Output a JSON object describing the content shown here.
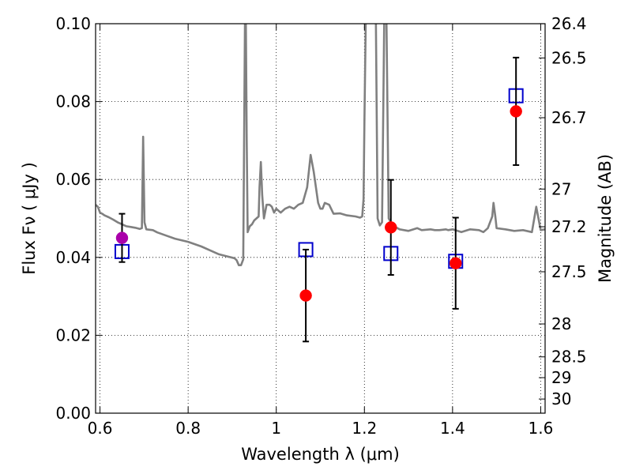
{
  "chart_data": {
    "type": "scatter",
    "title": "",
    "xlabel": "Wavelength  λ (μm)",
    "ylabel": "Flux  Fν  ( μJy )",
    "ylabel_right": "Magnitude (AB)",
    "xlim": [
      0.59,
      1.61
    ],
    "ylim": [
      0.0,
      0.1
    ],
    "grid": true,
    "x_ticks": [
      {
        "value": 0.6,
        "label": "0.6"
      },
      {
        "value": 0.8,
        "label": "0.8"
      },
      {
        "value": 1.0,
        "label": "1"
      },
      {
        "value": 1.2,
        "label": "1.2"
      },
      {
        "value": 1.4,
        "label": "1.4"
      },
      {
        "value": 1.6,
        "label": "1.6"
      }
    ],
    "y_ticks": [
      {
        "value": 0.0,
        "label": "0.00"
      },
      {
        "value": 0.02,
        "label": "0.02"
      },
      {
        "value": 0.04,
        "label": "0.04"
      },
      {
        "value": 0.06,
        "label": "0.06"
      },
      {
        "value": 0.08,
        "label": "0.08"
      },
      {
        "value": 0.1,
        "label": "0.10"
      }
    ],
    "right_ticks": [
      {
        "value": 26.4,
        "label": "26.4"
      },
      {
        "value": 26.5,
        "label": "26.5"
      },
      {
        "value": 26.7,
        "label": "26.7"
      },
      {
        "value": 27.0,
        "label": "27"
      },
      {
        "value": 27.2,
        "label": "27.2"
      },
      {
        "value": 27.5,
        "label": "27.5"
      },
      {
        "value": 28.0,
        "label": "28"
      },
      {
        "value": 28.5,
        "label": "28.5"
      },
      {
        "value": 29.0,
        "label": "29"
      },
      {
        "value": 30.0,
        "label": "30"
      }
    ],
    "series": [
      {
        "type": "line",
        "color": "#808080",
        "points": [
          [
            0.59,
            0.0535
          ],
          [
            0.595,
            0.053
          ],
          [
            0.6,
            0.0515
          ],
          [
            0.605,
            0.0512
          ],
          [
            0.61,
            0.0508
          ],
          [
            0.62,
            0.0503
          ],
          [
            0.63,
            0.0497
          ],
          [
            0.64,
            0.049
          ],
          [
            0.65,
            0.0485
          ],
          [
            0.66,
            0.048
          ],
          [
            0.67,
            0.0478
          ],
          [
            0.68,
            0.0476
          ],
          [
            0.69,
            0.0473
          ],
          [
            0.695,
            0.0475
          ],
          [
            0.698,
            0.071
          ],
          [
            0.701,
            0.049
          ],
          [
            0.705,
            0.0472
          ],
          [
            0.72,
            0.047
          ],
          [
            0.73,
            0.0464
          ],
          [
            0.74,
            0.046
          ],
          [
            0.75,
            0.0456
          ],
          [
            0.77,
            0.0448
          ],
          [
            0.8,
            0.044
          ],
          [
            0.83,
            0.0428
          ],
          [
            0.85,
            0.0418
          ],
          [
            0.87,
            0.0408
          ],
          [
            0.89,
            0.0402
          ],
          [
            0.905,
            0.0398
          ],
          [
            0.91,
            0.0393
          ],
          [
            0.915,
            0.038
          ],
          [
            0.92,
            0.038
          ],
          [
            0.925,
            0.0395
          ],
          [
            0.927,
            0.07
          ],
          [
            0.929,
            0.101
          ],
          [
            0.931,
            0.101
          ],
          [
            0.933,
            0.07
          ],
          [
            0.935,
            0.0465
          ],
          [
            0.94,
            0.048
          ],
          [
            0.945,
            0.0485
          ],
          [
            0.95,
            0.0495
          ],
          [
            0.96,
            0.0505
          ],
          [
            0.962,
            0.058
          ],
          [
            0.965,
            0.0645
          ],
          [
            0.968,
            0.056
          ],
          [
            0.972,
            0.05
          ],
          [
            0.978,
            0.0535
          ],
          [
            0.985,
            0.0535
          ],
          [
            0.99,
            0.053
          ],
          [
            0.995,
            0.0515
          ],
          [
            1.0,
            0.0525
          ],
          [
            1.01,
            0.0515
          ],
          [
            1.02,
            0.0525
          ],
          [
            1.03,
            0.053
          ],
          [
            1.04,
            0.0525
          ],
          [
            1.05,
            0.0535
          ],
          [
            1.06,
            0.054
          ],
          [
            1.07,
            0.058
          ],
          [
            1.078,
            0.0663
          ],
          [
            1.085,
            0.062
          ],
          [
            1.095,
            0.054
          ],
          [
            1.1,
            0.0525
          ],
          [
            1.105,
            0.0525
          ],
          [
            1.11,
            0.054
          ],
          [
            1.12,
            0.0535
          ],
          [
            1.13,
            0.0512
          ],
          [
            1.145,
            0.0513
          ],
          [
            1.16,
            0.0508
          ],
          [
            1.18,
            0.0505
          ],
          [
            1.19,
            0.0502
          ],
          [
            1.195,
            0.0505
          ],
          [
            1.198,
            0.055
          ],
          [
            1.2,
            0.075
          ],
          [
            1.203,
            0.101
          ],
          [
            1.207,
            0.101
          ],
          [
            1.21,
            0.101
          ],
          [
            1.215,
            0.101
          ],
          [
            1.218,
            0.101
          ],
          [
            1.222,
            0.101
          ],
          [
            1.226,
            0.101
          ],
          [
            1.23,
            0.05
          ],
          [
            1.235,
            0.0482
          ],
          [
            1.24,
            0.049
          ],
          [
            1.245,
            0.101
          ],
          [
            1.25,
            0.101
          ],
          [
            1.255,
            0.05
          ],
          [
            1.26,
            0.049
          ],
          [
            1.27,
            0.0478
          ],
          [
            1.28,
            0.0472
          ],
          [
            1.29,
            0.047
          ],
          [
            1.3,
            0.0468
          ],
          [
            1.32,
            0.0475
          ],
          [
            1.33,
            0.047
          ],
          [
            1.35,
            0.0472
          ],
          [
            1.36,
            0.047
          ],
          [
            1.37,
            0.047
          ],
          [
            1.385,
            0.0472
          ],
          [
            1.39,
            0.047
          ],
          [
            1.4,
            0.0472
          ],
          [
            1.42,
            0.0465
          ],
          [
            1.44,
            0.0472
          ],
          [
            1.46,
            0.047
          ],
          [
            1.47,
            0.0465
          ],
          [
            1.48,
            0.0475
          ],
          [
            1.49,
            0.0505
          ],
          [
            1.493,
            0.054
          ],
          [
            1.497,
            0.0505
          ],
          [
            1.5,
            0.0475
          ],
          [
            1.52,
            0.0472
          ],
          [
            1.54,
            0.0468
          ],
          [
            1.56,
            0.047
          ],
          [
            1.58,
            0.0465
          ],
          [
            1.585,
            0.0498
          ],
          [
            1.59,
            0.053
          ],
          [
            1.595,
            0.05
          ],
          [
            1.6,
            0.047
          ],
          [
            1.61,
            0.0472
          ]
        ]
      },
      {
        "type": "scatter",
        "marker": "open-square",
        "color": "#0000cc",
        "points": [
          [
            0.65,
            0.0415
          ],
          [
            1.067,
            0.042
          ],
          [
            1.26,
            0.041
          ],
          [
            1.407,
            0.039
          ],
          [
            1.544,
            0.0815
          ]
        ]
      },
      {
        "type": "scatter",
        "marker": "filled-circle",
        "color": "#ff0000",
        "points": [
          {
            "x": 1.067,
            "y": 0.0302,
            "err": 0.0118
          },
          {
            "x": 1.26,
            "y": 0.0477,
            "err": 0.0122
          },
          {
            "x": 1.407,
            "y": 0.0385,
            "err": 0.0117
          },
          {
            "x": 1.544,
            "y": 0.0775,
            "err": 0.0138
          }
        ]
      },
      {
        "type": "scatter",
        "marker": "filled-circle",
        "color": "#aa00aa",
        "points": [
          {
            "x": 0.65,
            "y": 0.045,
            "err": 0.0062
          }
        ]
      }
    ]
  }
}
